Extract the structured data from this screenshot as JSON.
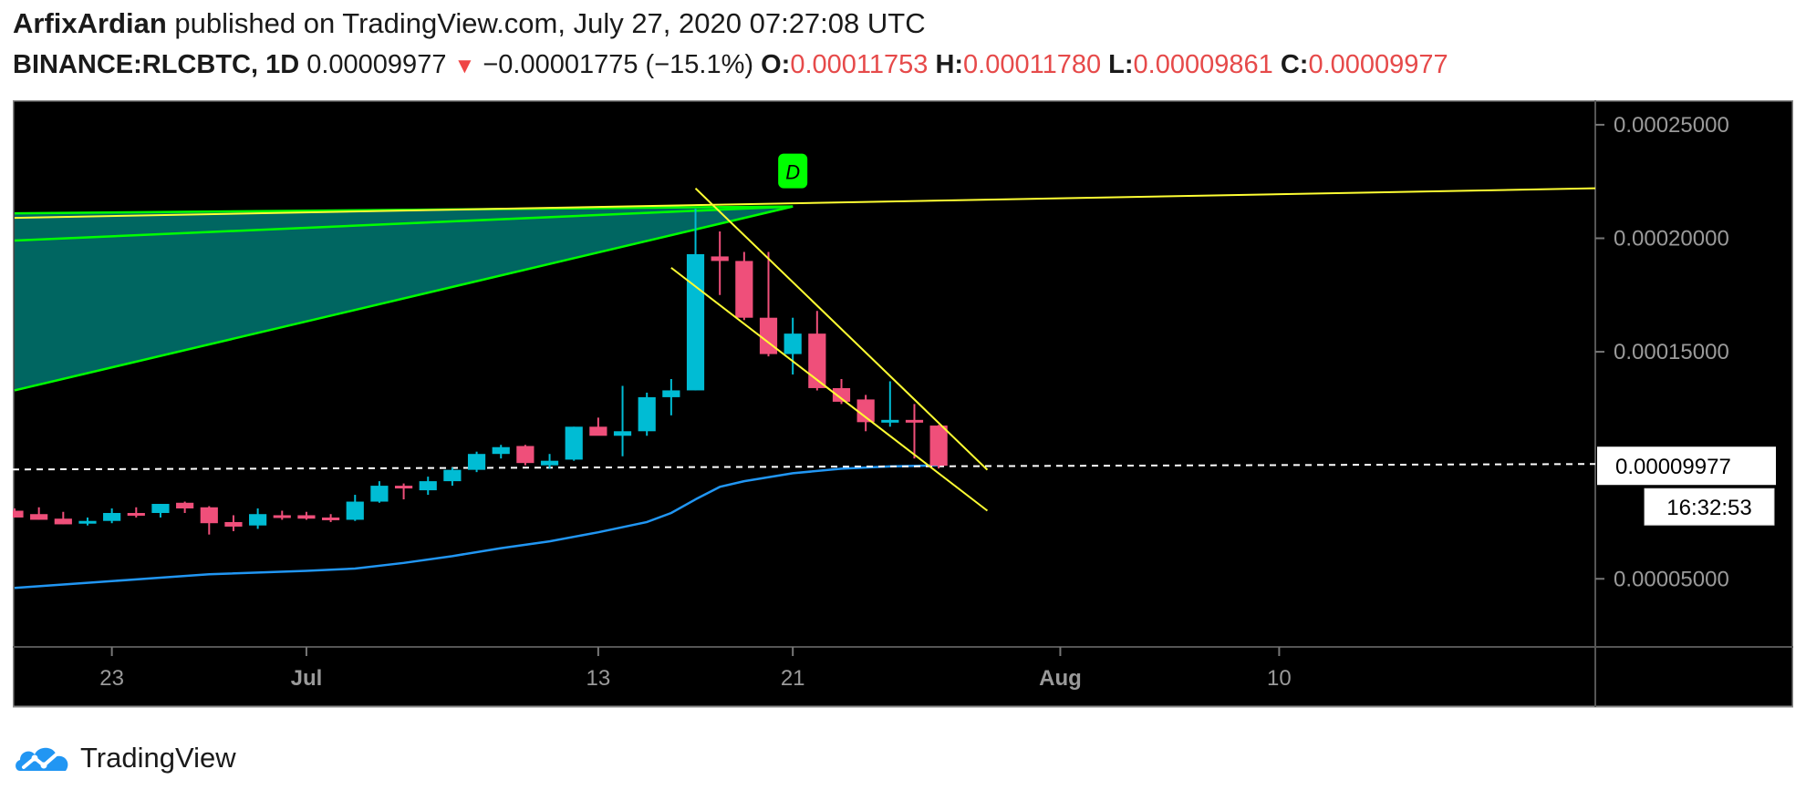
{
  "header": {
    "author": "ArfixArdian",
    "published": " published on TradingView.com, July 27, 2020 07:27:08 UTC",
    "symbol": "BINANCE:RLCBTC, 1D",
    "price": "0.00009977",
    "change": "−0.00001775 (−15.1%)",
    "open_label": "O:",
    "open": "0.00011753",
    "high_label": "H:",
    "high": "0.00011780",
    "low_label": "L:",
    "low": "0.00009861",
    "close_label": "C:",
    "close": "0.00009977"
  },
  "footer": {
    "brand": "TradingView"
  },
  "colors": {
    "up": "#00bcd4",
    "down": "#ef4f7a",
    "pattern": "#00ff00",
    "channel": "#ffff33",
    "ma": "#2196f3",
    "background": "#000000"
  },
  "chart_data": {
    "type": "candlestick",
    "title": "",
    "y_ticks": [
      "0.00025000",
      "0.00020000",
      "0.00015000",
      "0.00005000"
    ],
    "y_tick_values": [
      0.00025,
      0.0002,
      0.00015,
      5e-05
    ],
    "ylim": [
      2e-05,
      0.00026
    ],
    "x_ticks": [
      "23",
      "Jul",
      "13",
      "21",
      "Aug",
      "10"
    ],
    "x_tick_days": [
      -8,
      0,
      12,
      20,
      31,
      40
    ],
    "xlim": [
      -12,
      53
    ],
    "last_price_label": "0.00009977",
    "countdown_label": "16:32:53",
    "pattern_label": "D",
    "candles": [
      {
        "d": -12,
        "o": 8e-05,
        "h": 8.1e-05,
        "l": 7.7e-05,
        "c": 7.7e-05
      },
      {
        "d": -11,
        "o": 7.85e-05,
        "h": 8.15e-05,
        "l": 7.6e-05,
        "c": 7.6e-05
      },
      {
        "d": -10,
        "o": 7.65e-05,
        "h": 7.95e-05,
        "l": 7.4e-05,
        "c": 7.4e-05
      },
      {
        "d": -9,
        "o": 7.45e-05,
        "h": 7.7e-05,
        "l": 7.35e-05,
        "c": 7.55e-05
      },
      {
        "d": -8,
        "o": 7.55e-05,
        "h": 8.1e-05,
        "l": 7.45e-05,
        "c": 7.9e-05
      },
      {
        "d": -7,
        "o": 7.9e-05,
        "h": 8.15e-05,
        "l": 7.7e-05,
        "c": 7.8e-05
      },
      {
        "d": -6,
        "o": 7.9e-05,
        "h": 8.3e-05,
        "l": 7.7e-05,
        "c": 8.3e-05
      },
      {
        "d": -5,
        "o": 8.35e-05,
        "h": 8.4e-05,
        "l": 7.9e-05,
        "c": 8.1e-05
      },
      {
        "d": -4,
        "o": 8.15e-05,
        "h": 8.2e-05,
        "l": 6.95e-05,
        "c": 7.45e-05
      },
      {
        "d": -3,
        "o": 7.5e-05,
        "h": 7.8e-05,
        "l": 7.1e-05,
        "c": 7.3e-05
      },
      {
        "d": -2,
        "o": 7.35e-05,
        "h": 8.1e-05,
        "l": 7.2e-05,
        "c": 7.85e-05
      },
      {
        "d": -1,
        "o": 7.8e-05,
        "h": 8e-05,
        "l": 7.6e-05,
        "c": 7.75e-05
      },
      {
        "d": 0,
        "o": 7.8e-05,
        "h": 7.95e-05,
        "l": 7.6e-05,
        "c": 7.65e-05
      },
      {
        "d": 1,
        "o": 7.7e-05,
        "h": 7.85e-05,
        "l": 7.5e-05,
        "c": 7.6e-05
      },
      {
        "d": 2,
        "o": 7.6e-05,
        "h": 8.7e-05,
        "l": 7.55e-05,
        "c": 8.4e-05
      },
      {
        "d": 3,
        "o": 8.4e-05,
        "h": 9.3e-05,
        "l": 8.35e-05,
        "c": 9.1e-05
      },
      {
        "d": 4,
        "o": 9.1e-05,
        "h": 9.2e-05,
        "l": 8.5e-05,
        "c": 9e-05
      },
      {
        "d": 5,
        "o": 8.9e-05,
        "h": 9.5e-05,
        "l": 8.7e-05,
        "c": 9.3e-05
      },
      {
        "d": 6,
        "o": 9.3e-05,
        "h": 9.9e-05,
        "l": 9.1e-05,
        "c": 9.8e-05
      },
      {
        "d": 7,
        "o": 9.8e-05,
        "h": 0.000106,
        "l": 9.7e-05,
        "c": 0.000105
      },
      {
        "d": 8,
        "o": 0.000105,
        "h": 0.000109,
        "l": 0.000103,
        "c": 0.000108
      },
      {
        "d": 9,
        "o": 0.0001085,
        "h": 0.000109,
        "l": 0.0001,
        "c": 0.000101
      },
      {
        "d": 10,
        "o": 0.0001,
        "h": 0.000105,
        "l": 9.85e-05,
        "c": 0.000102
      },
      {
        "d": 11,
        "o": 0.0001025,
        "h": 0.000117,
        "l": 0.000102,
        "c": 0.000117
      },
      {
        "d": 12,
        "o": 0.000117,
        "h": 0.000121,
        "l": 0.000114,
        "c": 0.000113
      },
      {
        "d": 13,
        "o": 0.000113,
        "h": 0.000135,
        "l": 0.000104,
        "c": 0.000115
      },
      {
        "d": 14,
        "o": 0.000115,
        "h": 0.000132,
        "l": 0.000113,
        "c": 0.00013
      },
      {
        "d": 15,
        "o": 0.00013,
        "h": 0.000138,
        "l": 0.000122,
        "c": 0.000133
      },
      {
        "d": 16,
        "o": 0.000133,
        "h": 0.000213,
        "l": 0.000133,
        "c": 0.000193
      },
      {
        "d": 17,
        "o": 0.000192,
        "h": 0.000203,
        "l": 0.000175,
        "c": 0.00019
      },
      {
        "d": 18,
        "o": 0.00019,
        "h": 0.000194,
        "l": 0.000164,
        "c": 0.000165
      },
      {
        "d": 19,
        "o": 0.000165,
        "h": 0.000194,
        "l": 0.000148,
        "c": 0.000149
      },
      {
        "d": 20,
        "o": 0.000149,
        "h": 0.000165,
        "l": 0.00014,
        "c": 0.000158
      },
      {
        "d": 21,
        "o": 0.000158,
        "h": 0.000168,
        "l": 0.000133,
        "c": 0.000134
      },
      {
        "d": 22,
        "o": 0.000134,
        "h": 0.000138,
        "l": 0.000127,
        "c": 0.000128
      },
      {
        "d": 23,
        "o": 0.000129,
        "h": 0.000131,
        "l": 0.000115,
        "c": 0.000119
      },
      {
        "d": 24,
        "o": 0.000119,
        "h": 0.000137,
        "l": 0.000117,
        "c": 0.00012
      },
      {
        "d": 25,
        "o": 0.00012,
        "h": 0.000127,
        "l": 0.000103,
        "c": 0.000119
      },
      {
        "d": 26,
        "o": 0.0001175,
        "h": 0.0001178,
        "l": 9.86e-05,
        "c": 9.98e-05
      }
    ],
    "moving_average": [
      {
        "d": -12,
        "v": 4.6e-05
      },
      {
        "d": -8,
        "v": 4.9e-05
      },
      {
        "d": -4,
        "v": 5.2e-05
      },
      {
        "d": 0,
        "v": 5.35e-05
      },
      {
        "d": 2,
        "v": 5.45e-05
      },
      {
        "d": 4,
        "v": 5.7e-05
      },
      {
        "d": 6,
        "v": 6e-05
      },
      {
        "d": 8,
        "v": 6.35e-05
      },
      {
        "d": 10,
        "v": 6.65e-05
      },
      {
        "d": 12,
        "v": 7.05e-05
      },
      {
        "d": 14,
        "v": 7.5e-05
      },
      {
        "d": 15,
        "v": 7.9e-05
      },
      {
        "d": 16,
        "v": 8.5e-05
      },
      {
        "d": 17,
        "v": 9.05e-05
      },
      {
        "d": 18,
        "v": 9.3e-05
      },
      {
        "d": 20,
        "v": 9.65e-05
      },
      {
        "d": 22,
        "v": 9.85e-05
      },
      {
        "d": 24,
        "v": 9.95e-05
      },
      {
        "d": 26,
        "v": 0.0001
      }
    ],
    "annotations": {
      "wedge_top_left": {
        "d": -12,
        "v": 0.000211
      },
      "wedge_bot_left": {
        "d": -12,
        "v": 0.000199
      },
      "wedge_low_left": {
        "d": -12,
        "v": 0.000133
      },
      "wedge_apex": {
        "d": 20,
        "v": 0.000214
      },
      "long_line_start": {
        "d": -12,
        "v": 0.000209
      },
      "long_line_end": {
        "d": 53,
        "v": 0.000222
      },
      "channel_upper_start": {
        "d": 16,
        "v": 0.000222
      },
      "channel_upper_end": {
        "d": 28,
        "v": 9.8e-05
      },
      "channel_lower_start": {
        "d": 15,
        "v": 0.000187
      },
      "channel_lower_end": {
        "d": 28,
        "v": 8e-05
      },
      "last_price": 9.977e-05
    }
  }
}
